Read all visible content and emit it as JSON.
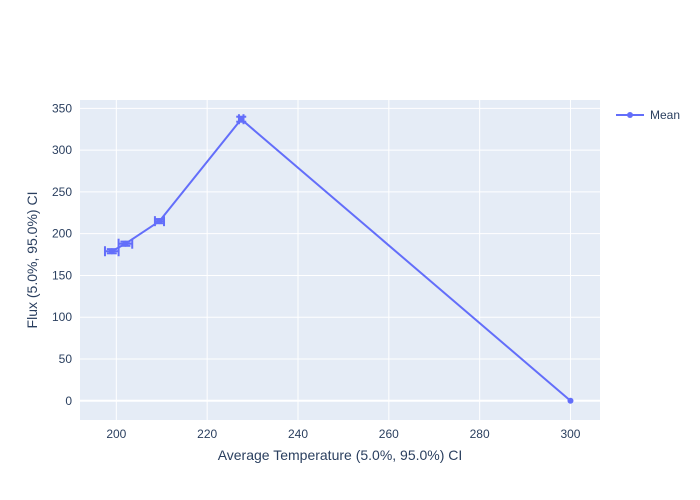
{
  "chart_data": {
    "type": "line",
    "title": "",
    "xlabel": "Average Temperature (5.0%, 95.0%) CI",
    "ylabel": "Flux (5.0%, 95.0%) CI",
    "xlim": [
      192,
      306.5
    ],
    "ylim": [
      -23,
      360
    ],
    "xticks": [
      200,
      220,
      240,
      260,
      280,
      300
    ],
    "yticks": [
      0,
      50,
      100,
      150,
      200,
      250,
      300,
      350
    ],
    "grid": true,
    "legend_position": "top-right",
    "colors": {
      "plot_bg": "#e5ecf6",
      "series": "#636efa",
      "grid": "#ffffff",
      "text": "#2a3f5f"
    },
    "series": [
      {
        "name": "Mean",
        "mode": "lines+markers",
        "points": [
          {
            "x": 199.0,
            "y": 179.0,
            "x_low": 197.5,
            "x_high": 200.5,
            "y_low": 176.5,
            "y_high": 181.5
          },
          {
            "x": 202.0,
            "y": 188.0,
            "x_low": 200.5,
            "x_high": 203.5,
            "y_low": 185.5,
            "y_high": 190.5
          },
          {
            "x": 209.5,
            "y": 215.0,
            "x_low": 208.5,
            "x_high": 210.5,
            "y_low": 212.5,
            "y_high": 217.5
          },
          {
            "x": 227.5,
            "y": 337.0,
            "x_low": 227.0,
            "x_high": 228.0,
            "y_low": 334.0,
            "y_high": 340.0
          },
          {
            "x": 300.0,
            "y": 0.0,
            "x_low": 300.0,
            "x_high": 300.0,
            "y_low": 0.0,
            "y_high": 0.0
          }
        ]
      }
    ]
  }
}
